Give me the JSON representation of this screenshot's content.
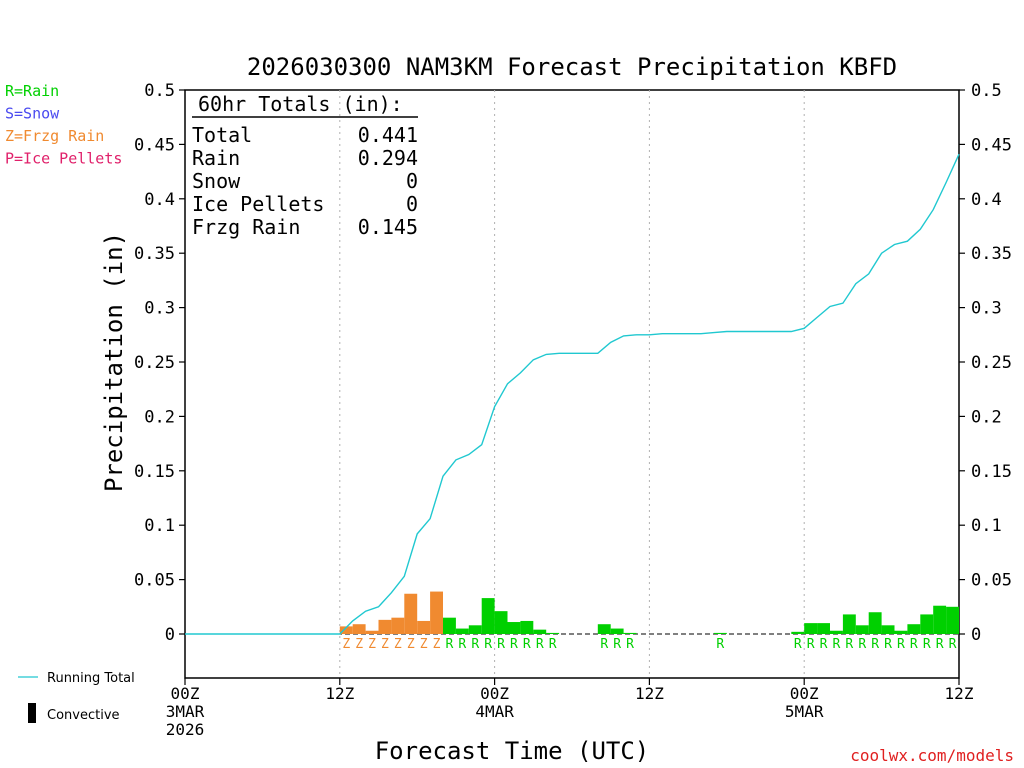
{
  "chart_data": {
    "type": "bar",
    "title": "2026030300 NAM3KM Forecast Precipitation KBFD",
    "ylabel": "Precipitation (in)",
    "xlabel": "Forecast Time (UTC)",
    "ylim": [
      -0.04,
      0.5
    ],
    "xlim": [
      0,
      60
    ],
    "yticks": [
      0,
      0.05,
      0.1,
      0.15,
      0.2,
      0.25,
      0.3,
      0.35,
      0.4,
      0.45,
      0.5
    ],
    "ytick_labels": [
      "0",
      "0.05",
      "0.1",
      "0.15",
      "0.2",
      "0.25",
      "0.3",
      "0.35",
      "0.4",
      "0.45",
      "0.5"
    ],
    "xticks": [
      {
        "hour": 0,
        "lines": [
          "00Z",
          "3MAR",
          "2026"
        ]
      },
      {
        "hour": 12,
        "lines": [
          "12Z"
        ]
      },
      {
        "hour": 24,
        "lines": [
          "00Z",
          "4MAR"
        ]
      },
      {
        "hour": 36,
        "lines": [
          "12Z"
        ]
      },
      {
        "hour": 48,
        "lines": [
          "00Z",
          "5MAR"
        ]
      },
      {
        "hour": 60,
        "lines": [
          "12Z"
        ]
      }
    ],
    "legend": {
      "ptype": [
        {
          "text": "R=Rain",
          "color": "#00d000"
        },
        {
          "text": "S=Snow",
          "color": "#4a4af0"
        },
        {
          "text": "Z=Frzg Rain",
          "color": "#f08a30"
        },
        {
          "text": "P=Ice Pellets",
          "color": "#e0206a"
        }
      ],
      "lines": [
        {
          "text": "Running Total",
          "color": "#20c8d0"
        },
        {
          "text": "Convective",
          "color": "#000000"
        }
      ]
    },
    "totals": {
      "header": "60hr Totals (in):",
      "rows": [
        {
          "label": "Total",
          "value": "0.441"
        },
        {
          "label": "Rain",
          "value": "0.294"
        },
        {
          "label": "Snow",
          "value": "0"
        },
        {
          "label": "Ice Pellets",
          "value": "0"
        },
        {
          "label": "Frzg Rain",
          "value": "0.145"
        }
      ]
    },
    "bars": [
      {
        "hour": 13,
        "value": 0.007,
        "ptype": "Z"
      },
      {
        "hour": 14,
        "value": 0.009,
        "ptype": "Z"
      },
      {
        "hour": 15,
        "value": 0.003,
        "ptype": "Z"
      },
      {
        "hour": 16,
        "value": 0.013,
        "ptype": "Z"
      },
      {
        "hour": 17,
        "value": 0.015,
        "ptype": "Z"
      },
      {
        "hour": 18,
        "value": 0.037,
        "ptype": "Z"
      },
      {
        "hour": 19,
        "value": 0.012,
        "ptype": "Z"
      },
      {
        "hour": 20,
        "value": 0.039,
        "ptype": "Z"
      },
      {
        "hour": 21,
        "value": 0.015,
        "ptype": "R"
      },
      {
        "hour": 22,
        "value": 0.005,
        "ptype": "R"
      },
      {
        "hour": 23,
        "value": 0.008,
        "ptype": "R"
      },
      {
        "hour": 24,
        "value": 0.033,
        "ptype": "R"
      },
      {
        "hour": 25,
        "value": 0.021,
        "ptype": "R"
      },
      {
        "hour": 26,
        "value": 0.011,
        "ptype": "R"
      },
      {
        "hour": 27,
        "value": 0.012,
        "ptype": "R"
      },
      {
        "hour": 28,
        "value": 0.004,
        "ptype": "R"
      },
      {
        "hour": 29,
        "value": 0.001,
        "ptype": "R"
      },
      {
        "hour": 33,
        "value": 0.009,
        "ptype": "R"
      },
      {
        "hour": 34,
        "value": 0.005,
        "ptype": "R"
      },
      {
        "hour": 35,
        "value": 0.001,
        "ptype": "R"
      },
      {
        "hour": 42,
        "value": 0.001,
        "ptype": "R"
      },
      {
        "hour": 48,
        "value": 0.002,
        "ptype": "R"
      },
      {
        "hour": 49,
        "value": 0.01,
        "ptype": "R"
      },
      {
        "hour": 50,
        "value": 0.01,
        "ptype": "R"
      },
      {
        "hour": 51,
        "value": 0.003,
        "ptype": "R"
      },
      {
        "hour": 52,
        "value": 0.018,
        "ptype": "R"
      },
      {
        "hour": 53,
        "value": 0.008,
        "ptype": "R"
      },
      {
        "hour": 54,
        "value": 0.02,
        "ptype": "R"
      },
      {
        "hour": 55,
        "value": 0.008,
        "ptype": "R"
      },
      {
        "hour": 56,
        "value": 0.003,
        "ptype": "R"
      },
      {
        "hour": 57,
        "value": 0.009,
        "ptype": "R"
      },
      {
        "hour": 58,
        "value": 0.018,
        "ptype": "R"
      },
      {
        "hour": 59,
        "value": 0.026,
        "ptype": "R"
      },
      {
        "hour": 60,
        "value": 0.025,
        "ptype": "R"
      }
    ],
    "running_total": {
      "hours": [
        0,
        10,
        11,
        12,
        13,
        14,
        15,
        16,
        17,
        18,
        19,
        20,
        21,
        22,
        23,
        24,
        25,
        26,
        27,
        28,
        29,
        30,
        31,
        32,
        33,
        34,
        35,
        36,
        37,
        40,
        41,
        42,
        43,
        44,
        45,
        46,
        47,
        48,
        49,
        50,
        51,
        52,
        53,
        54,
        55,
        56,
        57,
        58,
        59,
        60
      ],
      "values": [
        0,
        0,
        0,
        0,
        0.012,
        0.021,
        0.025,
        0.038,
        0.053,
        0.092,
        0.106,
        0.145,
        0.16,
        0.165,
        0.174,
        0.209,
        0.23,
        0.24,
        0.252,
        0.257,
        0.258,
        0.258,
        0.258,
        0.258,
        0.268,
        0.274,
        0.275,
        0.275,
        0.276,
        0.276,
        0.277,
        0.278,
        0.278,
        0.278,
        0.278,
        0.278,
        0.278,
        0.281,
        0.291,
        0.301,
        0.304,
        0.322,
        0.331,
        0.35,
        0.358,
        0.361,
        0.372,
        0.39,
        0.415,
        0.441
      ]
    },
    "colors": {
      "R": "#00d000",
      "S": "#4a4af0",
      "Z": "#f08a30",
      "P": "#e0206a",
      "running": "#20c8d0",
      "grid": "#b0b0b0"
    }
  },
  "footer": {
    "credit": "coolwx.com/models",
    "credit_color": "#e02020"
  }
}
